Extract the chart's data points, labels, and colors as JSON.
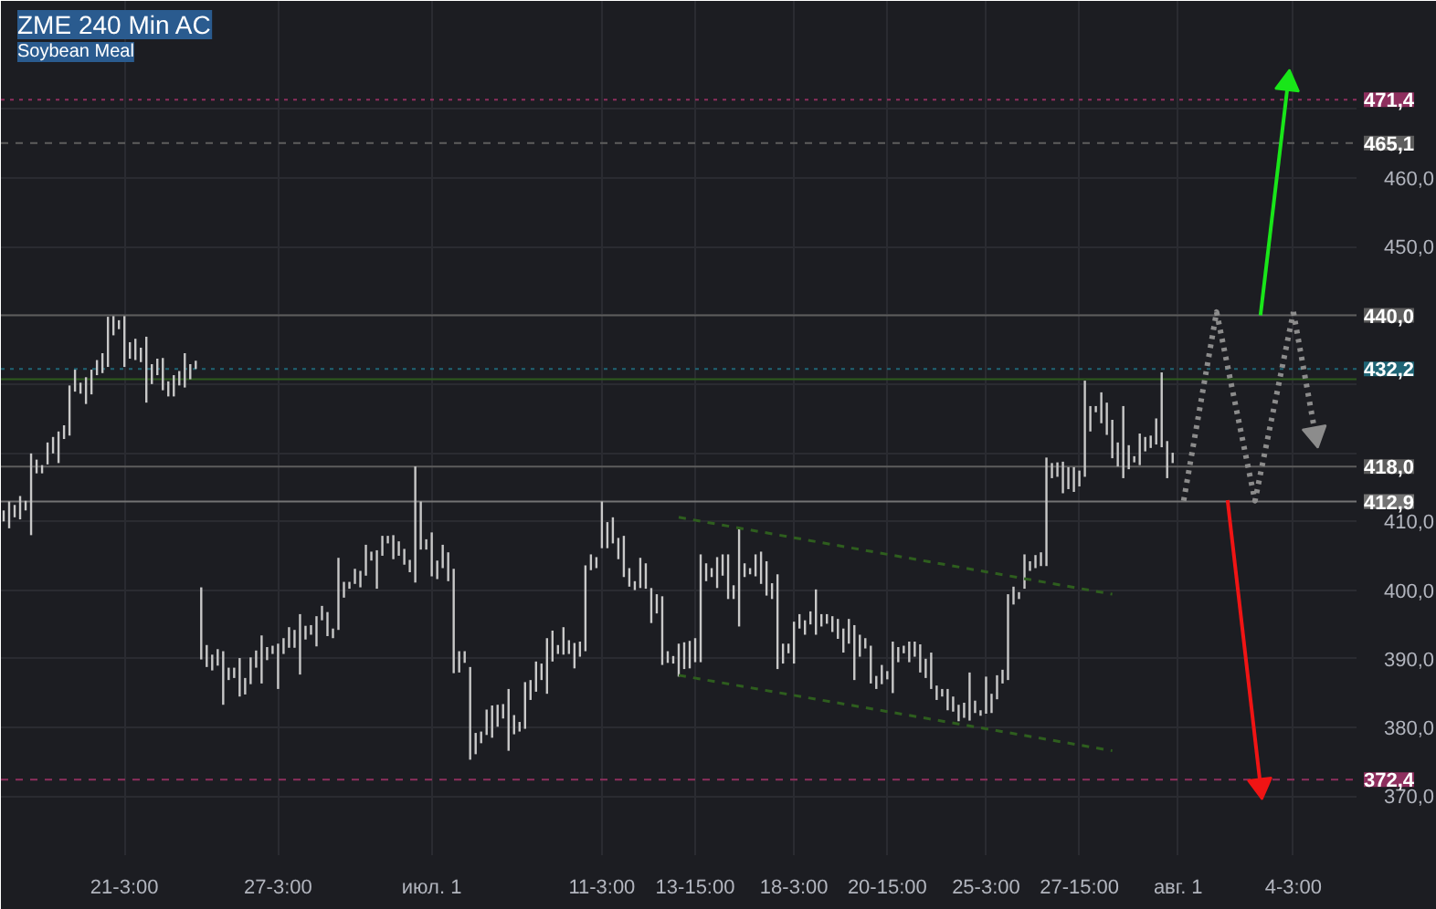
{
  "chart_data": {
    "type": "bar",
    "title": "ZME 240 Min AC",
    "subtitle": "Soybean Meal",
    "categories": [
      null,
      null,
      null,
      null,
      null,
      null,
      null,
      null,
      null,
      null,
      null,
      null,
      null,
      null,
      null,
      null,
      null,
      null,
      null,
      null,
      null,
      null,
      "21-3:00",
      null,
      null,
      null,
      null,
      null,
      null,
      null,
      null,
      null,
      null,
      null,
      null,
      null,
      null,
      null,
      null,
      null,
      null,
      null,
      null,
      null,
      null,
      null,
      null,
      null,
      null,
      null,
      "27-3:00",
      null,
      null,
      null,
      null,
      null,
      null,
      null,
      null,
      null,
      null,
      null,
      null,
      null,
      null,
      null,
      null,
      null,
      null,
      null,
      null,
      null,
      null,
      null,
      null,
      null,
      null,
      null,
      "июл. 1",
      null,
      null,
      null,
      null,
      null,
      null,
      null,
      null,
      null,
      null,
      null,
      null,
      null,
      null,
      null,
      null,
      null,
      null,
      null,
      null,
      null,
      null,
      null,
      null,
      null,
      null,
      null,
      null,
      null,
      null,
      "11-3:00",
      null,
      null,
      null,
      null,
      null,
      null,
      null,
      null,
      null,
      null,
      null,
      null,
      null,
      null,
      null,
      null,
      "13-15:00",
      null,
      null,
      null,
      null,
      null,
      null,
      null,
      null,
      null,
      null,
      null,
      null,
      null,
      null,
      null,
      null,
      null,
      "18-3:00",
      null,
      null,
      null,
      null,
      null,
      null,
      null,
      null,
      null,
      null,
      null,
      null,
      null,
      null,
      null,
      null,
      "20-15:00",
      null,
      null,
      null,
      null,
      null,
      null,
      null,
      null,
      null,
      null,
      null,
      null,
      null,
      null,
      null,
      null,
      null,
      "25-3:00",
      null,
      null,
      null,
      null,
      null,
      null,
      null,
      null,
      null,
      null,
      null,
      null,
      null,
      null,
      null,
      null,
      "27-15:00",
      null,
      null,
      null,
      null,
      null,
      null,
      null,
      null,
      null,
      null,
      null,
      null,
      null,
      null,
      null,
      null,
      null,
      "авг. 1",
      null,
      null,
      null,
      null,
      null,
      null,
      null,
      null,
      null,
      null,
      null,
      null,
      null,
      null,
      null,
      null,
      null,
      null,
      null,
      null,
      "4-3:00",
      null,
      null,
      null,
      null,
      null,
      null,
      null,
      null,
      null,
      null,
      null
    ],
    "ylim": [
      361.4,
      485.8
    ],
    "yticks": [
      {
        "value": 370,
        "label": "370,0"
      },
      {
        "value": 380,
        "label": "380,0"
      },
      {
        "value": 390,
        "label": "390,0"
      },
      {
        "value": 400,
        "label": "400,0"
      },
      {
        "value": 410,
        "label": "410,0"
      },
      {
        "value": 420,
        "label": null
      },
      {
        "value": 430,
        "label": null
      },
      {
        "value": 440,
        "label": null
      },
      {
        "value": 450,
        "label": "450,0"
      },
      {
        "value": 460,
        "label": "460,0"
      },
      {
        "value": 470,
        "label": null
      }
    ],
    "grid": true,
    "ref_lines": [
      {
        "axis": "y",
        "value": 471.4,
        "label": "471,4",
        "color": "#8e2f5e",
        "line_style": "dotted"
      },
      {
        "axis": "y",
        "value": 465.1,
        "label": "465,1",
        "color": "#5d5d5d",
        "line_style": "dashed"
      },
      {
        "axis": "y",
        "value": 440.0,
        "label": "440,0",
        "color": "#5d5d5d",
        "line_style": "solid"
      },
      {
        "axis": "y",
        "value": 430.7,
        "color": "#2e5a1e",
        "line_style": "solid"
      },
      {
        "axis": "y",
        "value": 432.2,
        "label": "432,2",
        "color": "#1f6475",
        "line_style": "dotted"
      },
      {
        "axis": "y",
        "value": 418.0,
        "label": "418,0",
        "color": "#5d5d5d",
        "line_style": "solid"
      },
      {
        "axis": "y",
        "value": 412.9,
        "label": "412,9",
        "color": "#747474",
        "line_style": "solid"
      },
      {
        "axis": "y",
        "value": 372.4,
        "label": "372,4",
        "color": "#8e2f5e",
        "line_style": "dashed"
      }
    ],
    "series": [
      {
        "color": "#c8c8c8",
        "base": [
          410.0,
          409.0,
          410.6,
          410.3,
          411.6,
          408.0,
          417.0,
          417.0,
          418.3,
          419.9,
          418.5,
          422.0,
          422.5,
          428.9,
          428.6,
          427.1,
          428.5,
          431.3,
          431.6,
          432.5,
          437.1,
          438.0,
          432.5,
          433.7,
          433.5,
          433.2,
          427.3,
          430.0,
          431.3,
          429.1,
          428.2,
          428.2,
          429.8,
          429.5,
          430.7,
          432.2,
          389.9,
          388.8,
          388.3,
          389.0,
          383.3,
          386.9,
          387.2,
          384.5,
          384.8,
          386.3,
          388.7,
          386.4,
          389.8,
          390.7,
          385.6,
          390.7,
          391.6,
          391.6,
          387.7,
          392.8,
          393.5,
          391.8,
          395.6,
          393.3,
          393.0,
          394.2,
          398.9,
          400.2,
          400.9,
          400.4,
          402.1,
          404.3,
          400.2,
          405.0,
          406.8,
          404.5,
          405.0,
          403.7,
          402.6,
          401.1,
          405.9,
          405.9,
          402.0,
          401.6,
          403.2,
          401.3,
          387.9,
          388.0,
          389.4,
          375.3,
          376.1,
          377.7,
          378.9,
          378.5,
          380.1,
          381.3,
          376.6,
          379.0,
          379.4,
          379.8,
          384.0,
          385.2,
          386.9,
          384.9,
          389.6,
          390.7,
          390.6,
          390.7,
          388.6,
          390.3,
          391.1,
          402.9,
          403.2,
          406.1,
          406.1,
          406.8,
          404.5,
          401.9,
          400.5,
          400.0,
          400.3,
          400.2,
          395.2,
          396.6,
          389.1,
          389.4,
          389.3,
          387.4,
          388.5,
          388.6,
          389.5,
          389.5,
          401.3,
          401.9,
          400.3,
          402.1,
          398.7,
          398.7,
          394.7,
          401.9,
          402.3,
          402.0,
          400.9,
          399.2,
          398.7,
          388.5,
          389.3,
          390.8,
          389.3,
          394.4,
          393.5,
          395.0,
          393.5,
          394.7,
          395.1,
          393.9,
          392.9,
          390.9,
          392.2,
          386.9,
          390.3,
          391.5,
          386.4,
          385.6,
          386.3,
          387.0,
          385.0,
          389.5,
          390.8,
          389.5,
          390.3,
          388.0,
          387.2,
          385.6,
          384.0,
          384.5,
          382.5,
          382.3,
          380.9,
          381.4,
          381.0,
          382.1,
          381.7,
          382.0,
          382.1,
          384.1,
          386.4,
          386.9,
          397.9,
          398.7,
          400.2,
          402.8,
          403.2,
          403.5,
          403.5,
          416.3,
          416.5,
          414.1,
          414.7,
          414.3,
          415.1,
          416.5,
          423.1,
          425.9,
          424.3,
          422.6,
          419.2,
          418.0,
          416.3,
          417.6,
          418.6,
          418.2,
          420.2,
          420.7,
          421.2,
          420.8,
          416.3,
          418.5,
          null,
          null,
          null,
          null,
          null,
          null,
          null,
          null,
          null,
          null,
          null,
          null,
          null,
          null,
          null,
          null,
          null,
          null,
          null,
          null,
          null,
          null,
          null,
          null,
          null,
          null,
          null,
          null,
          null,
          null,
          null,
          null,
          null
        ],
        "values": [
          1.6,
          3.9,
          1.8,
          3.4,
          1.4,
          11.9,
          2.0,
          1.2,
          3.2,
          2.4,
          4.6,
          2.0,
          7.3,
          3.2,
          1.6,
          3.9,
          3.6,
          2.2,
          2.9,
          7.3,
          2.8,
          1.3,
          7.4,
          2.4,
          3.1,
          2.1,
          9.6,
          2.9,
          2.4,
          4.7,
          2.2,
          3.1,
          2.1,
          5.0,
          2.2,
          1.2,
          10.5,
          3.2,
          2.3,
          2.4,
          7.8,
          1.8,
          1.5,
          5.6,
          2.4,
          3.9,
          2.5,
          7.0,
          1.9,
          1.2,
          6.6,
          2.3,
          3.0,
          2.6,
          8.8,
          2.0,
          1.4,
          4.4,
          2.1,
          3.5,
          1.4,
          10.5,
          2.3,
          1.0,
          2.2,
          2.4,
          4.5,
          1.3,
          5.6,
          2.9,
          1.1,
          3.5,
          2.1,
          2.3,
          1.8,
          16.9,
          7.0,
          1.5,
          6.4,
          2.7,
          3.4,
          4.2,
          15.2,
          3.1,
          1.7,
          13.5,
          3.1,
          1.7,
          3.7,
          4.7,
          3.2,
          2.1,
          9.0,
          2.8,
          1.4,
          6.8,
          2.9,
          4.4,
          2.4,
          8.1,
          4.5,
          1.3,
          4.0,
          2.0,
          3.7,
          2.2,
          12.5,
          2.3,
          1.6,
          6.8,
          3.8,
          3.8,
          3.1,
          6.0,
          2.7,
          1.3,
          4.4,
          3.7,
          5.1,
          2.8,
          10.0,
          1.7,
          1.1,
          4.8,
          3.9,
          4.0,
          3.5,
          15.7,
          2.6,
          1.3,
          4.5,
          3.1,
          6.5,
          2.0,
          14.3,
          2.0,
          0.9,
          3.2,
          4.7,
          5.0,
          2.3,
          13.8,
          2.9,
          1.4,
          6.1,
          2.1,
          2.1,
          1.9,
          6.6,
          1.8,
          1.4,
          2.3,
          2.9,
          3.5,
          3.6,
          8.0,
          3.2,
          1.5,
          5.5,
          1.9,
          2.8,
          1.2,
          7.5,
          2.2,
          1.1,
          3.0,
          2.2,
          4.1,
          2.8,
          5.3,
          2.1,
          1.1,
          3.1,
          2.2,
          2.4,
          2.2,
          7.0,
          1.8,
          0.8,
          5.4,
          2.8,
          3.5,
          2.0,
          12.5,
          2.6,
          1.0,
          5.0,
          1.4,
          1.9,
          2.0,
          15.8,
          2.2,
          2.1,
          4.6,
          3.2,
          3.6,
          2.3,
          14.0,
          3.7,
          0.9,
          4.5,
          4.7,
          5.6,
          3.5,
          10.5,
          3.5,
          0.9,
          4.6,
          2.1,
          1.8,
          3.8,
          10.9,
          5.4,
          1.5,
          null,
          null,
          null,
          null,
          null,
          null,
          null,
          null,
          null,
          null,
          null,
          null,
          null,
          null,
          null,
          null,
          null,
          null,
          null,
          null,
          null,
          null,
          null,
          null,
          null,
          null,
          null,
          null,
          null,
          null,
          null,
          null,
          null
        ]
      },
      {
        "type": "line",
        "color": "#2e5e1e",
        "line_style": "dashed",
        "values": [
          null,
          null,
          null,
          null,
          null,
          null,
          null,
          null,
          null,
          null,
          null,
          null,
          null,
          null,
          null,
          null,
          null,
          null,
          null,
          null,
          null,
          null,
          null,
          null,
          null,
          null,
          null,
          null,
          null,
          null,
          null,
          null,
          null,
          null,
          null,
          null,
          null,
          null,
          null,
          null,
          null,
          null,
          null,
          null,
          null,
          null,
          null,
          null,
          null,
          null,
          null,
          null,
          null,
          null,
          null,
          null,
          null,
          null,
          null,
          null,
          null,
          null,
          null,
          null,
          null,
          null,
          null,
          null,
          null,
          null,
          null,
          null,
          null,
          null,
          null,
          null,
          null,
          null,
          null,
          null,
          null,
          null,
          null,
          null,
          null,
          null,
          null,
          null,
          null,
          null,
          null,
          null,
          null,
          null,
          null,
          null,
          null,
          null,
          null,
          null,
          null,
          null,
          null,
          null,
          null,
          null,
          null,
          null,
          null,
          null,
          null,
          null,
          null,
          null,
          null,
          null,
          null,
          null,
          null,
          null,
          null,
          null,
          null,
          410.6,
          null,
          null,
          null,
          null,
          null,
          null,
          null,
          null,
          null,
          null,
          null,
          null,
          null,
          null,
          null,
          null,
          null,
          null,
          null,
          null,
          null,
          null,
          null,
          null,
          null,
          null,
          null,
          null,
          null,
          null,
          null,
          null,
          null,
          null,
          null,
          null,
          null,
          null,
          null,
          null,
          null,
          null,
          null,
          null,
          null,
          null,
          null,
          null,
          null,
          null,
          null,
          null,
          null,
          null,
          null,
          null,
          null,
          null,
          null,
          null,
          null,
          null,
          null,
          null,
          null,
          null,
          null,
          null,
          null,
          null,
          null,
          null,
          null,
          null,
          null,
          null,
          null,
          null,
          399.4,
          null,
          null,
          null,
          null,
          null,
          null,
          null,
          null,
          null,
          null,
          null,
          null,
          null,
          null,
          null,
          null,
          null,
          null,
          null,
          null,
          null,
          null,
          null,
          null,
          null,
          null,
          null,
          null,
          null,
          null,
          null,
          null,
          null,
          null,
          null,
          null,
          null,
          null,
          null,
          null,
          null,
          null,
          null,
          null
        ]
      },
      {
        "type": "line",
        "color": "#2e5e1e",
        "line_style": "dashed",
        "values": [
          null,
          null,
          null,
          null,
          null,
          null,
          null,
          null,
          null,
          null,
          null,
          null,
          null,
          null,
          null,
          null,
          null,
          null,
          null,
          null,
          null,
          null,
          null,
          null,
          null,
          null,
          null,
          null,
          null,
          null,
          null,
          null,
          null,
          null,
          null,
          null,
          null,
          null,
          null,
          null,
          null,
          null,
          null,
          null,
          null,
          null,
          null,
          null,
          null,
          null,
          null,
          null,
          null,
          null,
          null,
          null,
          null,
          null,
          null,
          null,
          null,
          null,
          null,
          null,
          null,
          null,
          null,
          null,
          null,
          null,
          null,
          null,
          null,
          null,
          null,
          null,
          null,
          null,
          null,
          null,
          null,
          null,
          null,
          null,
          null,
          null,
          null,
          null,
          null,
          null,
          null,
          null,
          null,
          null,
          null,
          null,
          null,
          null,
          null,
          null,
          null,
          null,
          null,
          null,
          null,
          null,
          null,
          null,
          null,
          null,
          null,
          null,
          null,
          null,
          null,
          null,
          null,
          null,
          null,
          null,
          null,
          null,
          null,
          387.6,
          null,
          null,
          null,
          null,
          null,
          null,
          null,
          null,
          null,
          null,
          null,
          null,
          null,
          null,
          null,
          null,
          null,
          null,
          null,
          null,
          null,
          null,
          null,
          null,
          null,
          null,
          null,
          null,
          null,
          null,
          null,
          null,
          null,
          null,
          null,
          null,
          null,
          null,
          null,
          null,
          null,
          null,
          null,
          null,
          null,
          null,
          null,
          null,
          null,
          null,
          null,
          null,
          null,
          null,
          null,
          null,
          null,
          null,
          null,
          null,
          null,
          null,
          null,
          null,
          null,
          null,
          null,
          null,
          null,
          null,
          null,
          null,
          null,
          null,
          null,
          null,
          null,
          null,
          376.6,
          null,
          null,
          null,
          null,
          null,
          null,
          null,
          null,
          null,
          null,
          null,
          null,
          null,
          null,
          null,
          null,
          null,
          null,
          null,
          null,
          null,
          null,
          null,
          null,
          null,
          null,
          null,
          null,
          null,
          null,
          null,
          null,
          null,
          null,
          null,
          null,
          null,
          null,
          null,
          null,
          null,
          null,
          null,
          null
        ]
      },
      {
        "type": "line",
        "color": "#8c8c8c",
        "line_style": "dotted",
        "values": [
          null,
          null,
          null,
          null,
          null,
          null,
          null,
          null,
          null,
          null,
          null,
          null,
          null,
          null,
          null,
          null,
          null,
          null,
          null,
          null,
          null,
          null,
          null,
          null,
          null,
          null,
          null,
          null,
          null,
          null,
          null,
          null,
          null,
          null,
          null,
          null,
          null,
          null,
          null,
          null,
          null,
          null,
          null,
          null,
          null,
          null,
          null,
          null,
          null,
          null,
          null,
          null,
          null,
          null,
          null,
          null,
          null,
          null,
          null,
          null,
          null,
          null,
          null,
          null,
          null,
          null,
          null,
          null,
          null,
          null,
          null,
          null,
          null,
          null,
          null,
          null,
          null,
          null,
          null,
          null,
          null,
          null,
          null,
          null,
          null,
          null,
          null,
          null,
          null,
          null,
          null,
          null,
          null,
          null,
          null,
          null,
          null,
          null,
          null,
          null,
          null,
          null,
          null,
          null,
          null,
          null,
          null,
          null,
          null,
          null,
          null,
          null,
          null,
          null,
          null,
          null,
          null,
          null,
          null,
          null,
          null,
          null,
          null,
          null,
          null,
          null,
          null,
          null,
          null,
          null,
          null,
          null,
          null,
          null,
          null,
          null,
          null,
          null,
          null,
          null,
          null,
          null,
          null,
          null,
          null,
          null,
          null,
          null,
          null,
          null,
          null,
          null,
          null,
          null,
          null,
          null,
          null,
          null,
          null,
          null,
          null,
          null,
          null,
          null,
          null,
          null,
          null,
          null,
          null,
          null,
          null,
          null,
          null,
          null,
          null,
          null,
          null,
          null,
          null,
          null,
          null,
          null,
          null,
          null,
          null,
          null,
          null,
          null,
          null,
          null,
          null,
          null,
          null,
          null,
          null,
          null,
          null,
          null,
          null,
          null,
          null,
          null,
          null,
          null,
          null,
          null,
          null,
          null,
          null,
          null,
          null,
          null,
          null,
          null,
          null,
          413.0,
          null,
          null,
          null,
          null,
          null,
          440.5,
          null,
          null,
          null,
          null,
          null,
          null,
          413.0,
          null,
          null,
          null,
          null,
          null,
          null,
          440.5,
          null,
          null,
          null,
          null,
          null,
          null,
          null,
          null,
          null,
          null,
          null
        ]
      },
      {
        "type": "line",
        "color": "#8c8c8c",
        "line_style": "dotted",
        "marker": "triangle",
        "values": [
          null,
          null,
          null,
          null,
          null,
          null,
          null,
          null,
          null,
          null,
          null,
          null,
          null,
          null,
          null,
          null,
          null,
          null,
          null,
          null,
          null,
          null,
          null,
          null,
          null,
          null,
          null,
          null,
          null,
          null,
          null,
          null,
          null,
          null,
          null,
          null,
          null,
          null,
          null,
          null,
          null,
          null,
          null,
          null,
          null,
          null,
          null,
          null,
          null,
          null,
          null,
          null,
          null,
          null,
          null,
          null,
          null,
          null,
          null,
          null,
          null,
          null,
          null,
          null,
          null,
          null,
          null,
          null,
          null,
          null,
          null,
          null,
          null,
          null,
          null,
          null,
          null,
          null,
          null,
          null,
          null,
          null,
          null,
          null,
          null,
          null,
          null,
          null,
          null,
          null,
          null,
          null,
          null,
          null,
          null,
          null,
          null,
          null,
          null,
          null,
          null,
          null,
          null,
          null,
          null,
          null,
          null,
          null,
          null,
          null,
          null,
          null,
          null,
          null,
          null,
          null,
          null,
          null,
          null,
          null,
          null,
          null,
          null,
          null,
          null,
          null,
          null,
          null,
          null,
          null,
          null,
          null,
          null,
          null,
          null,
          null,
          null,
          null,
          null,
          null,
          null,
          null,
          null,
          null,
          null,
          null,
          null,
          null,
          null,
          null,
          null,
          null,
          null,
          null,
          null,
          null,
          null,
          null,
          null,
          null,
          null,
          null,
          null,
          null,
          null,
          null,
          null,
          null,
          null,
          null,
          null,
          null,
          null,
          null,
          null,
          null,
          null,
          null,
          null,
          null,
          null,
          null,
          null,
          null,
          null,
          null,
          null,
          null,
          null,
          null,
          null,
          null,
          null,
          null,
          null,
          null,
          null,
          null,
          null,
          null,
          null,
          null,
          null,
          null,
          null,
          null,
          null,
          null,
          null,
          null,
          null,
          null,
          null,
          null,
          null,
          null,
          null,
          null,
          null,
          null,
          null,
          null,
          null,
          null,
          null,
          null,
          null,
          null,
          null,
          null,
          null,
          null,
          null,
          null,
          null,
          440.5,
          null,
          null,
          null,
          422.7,
          null,
          null,
          null,
          null,
          null,
          null,
          null
        ]
      },
      {
        "type": "line",
        "color": "#19e619",
        "line_style": "solid",
        "marker": "triangle",
        "values": [
          null,
          null,
          null,
          null,
          null,
          null,
          null,
          null,
          null,
          null,
          null,
          null,
          null,
          null,
          null,
          null,
          null,
          null,
          null,
          null,
          null,
          null,
          null,
          null,
          null,
          null,
          null,
          null,
          null,
          null,
          null,
          null,
          null,
          null,
          null,
          null,
          null,
          null,
          null,
          null,
          null,
          null,
          null,
          null,
          null,
          null,
          null,
          null,
          null,
          null,
          null,
          null,
          null,
          null,
          null,
          null,
          null,
          null,
          null,
          null,
          null,
          null,
          null,
          null,
          null,
          null,
          null,
          null,
          null,
          null,
          null,
          null,
          null,
          null,
          null,
          null,
          null,
          null,
          null,
          null,
          null,
          null,
          null,
          null,
          null,
          null,
          null,
          null,
          null,
          null,
          null,
          null,
          null,
          null,
          null,
          null,
          null,
          null,
          null,
          null,
          null,
          null,
          null,
          null,
          null,
          null,
          null,
          null,
          null,
          null,
          null,
          null,
          null,
          null,
          null,
          null,
          null,
          null,
          null,
          null,
          null,
          null,
          null,
          null,
          null,
          null,
          null,
          null,
          null,
          null,
          null,
          null,
          null,
          null,
          null,
          null,
          null,
          null,
          null,
          null,
          null,
          null,
          null,
          null,
          null,
          null,
          null,
          null,
          null,
          null,
          null,
          null,
          null,
          null,
          null,
          null,
          null,
          null,
          null,
          null,
          null,
          null,
          null,
          null,
          null,
          null,
          null,
          null,
          null,
          null,
          null,
          null,
          null,
          null,
          null,
          null,
          null,
          null,
          null,
          null,
          null,
          null,
          null,
          null,
          null,
          null,
          null,
          null,
          null,
          null,
          null,
          null,
          null,
          null,
          null,
          null,
          null,
          null,
          null,
          null,
          null,
          null,
          null,
          null,
          null,
          null,
          null,
          null,
          null,
          null,
          null,
          null,
          null,
          null,
          null,
          null,
          null,
          null,
          null,
          null,
          null,
          null,
          null,
          null,
          null,
          null,
          null,
          null,
          null,
          440.0,
          null,
          null,
          null,
          null,
          473.8,
          null,
          null,
          null,
          null,
          null,
          null,
          null,
          null,
          null,
          null,
          null,
          null
        ]
      },
      {
        "type": "line",
        "color": "#f01414",
        "line_style": "solid",
        "marker": "triangle",
        "values": [
          null,
          null,
          null,
          null,
          null,
          null,
          null,
          null,
          null,
          null,
          null,
          null,
          null,
          null,
          null,
          null,
          null,
          null,
          null,
          null,
          null,
          null,
          null,
          null,
          null,
          null,
          null,
          null,
          null,
          null,
          null,
          null,
          null,
          null,
          null,
          null,
          null,
          null,
          null,
          null,
          null,
          null,
          null,
          null,
          null,
          null,
          null,
          null,
          null,
          null,
          null,
          null,
          null,
          null,
          null,
          null,
          null,
          null,
          null,
          null,
          null,
          null,
          null,
          null,
          null,
          null,
          null,
          null,
          null,
          null,
          null,
          null,
          null,
          null,
          null,
          null,
          null,
          null,
          null,
          null,
          null,
          null,
          null,
          null,
          null,
          null,
          null,
          null,
          null,
          null,
          null,
          null,
          null,
          null,
          null,
          null,
          null,
          null,
          null,
          null,
          null,
          null,
          null,
          null,
          null,
          null,
          null,
          null,
          null,
          null,
          null,
          null,
          null,
          null,
          null,
          null,
          null,
          null,
          null,
          null,
          null,
          null,
          null,
          null,
          null,
          null,
          null,
          null,
          null,
          null,
          null,
          null,
          null,
          null,
          null,
          null,
          null,
          null,
          null,
          null,
          null,
          null,
          null,
          null,
          null,
          null,
          null,
          null,
          null,
          null,
          null,
          null,
          null,
          null,
          null,
          null,
          null,
          null,
          null,
          null,
          null,
          null,
          null,
          null,
          null,
          null,
          null,
          null,
          null,
          null,
          null,
          null,
          null,
          null,
          null,
          null,
          null,
          null,
          null,
          null,
          null,
          null,
          null,
          null,
          null,
          null,
          null,
          null,
          null,
          null,
          null,
          null,
          null,
          null,
          null,
          null,
          null,
          null,
          null,
          null,
          null,
          null,
          null,
          null,
          null,
          null,
          null,
          null,
          null,
          null,
          null,
          null,
          null,
          null,
          null,
          null,
          null,
          null,
          null,
          null,
          null,
          null,
          null,
          413.1,
          null,
          null,
          null,
          null,
          null,
          371.5,
          null,
          null,
          null,
          null,
          null,
          null,
          null,
          null,
          null,
          null,
          null,
          null,
          null,
          null,
          null,
          null,
          null
        ]
      }
    ]
  }
}
